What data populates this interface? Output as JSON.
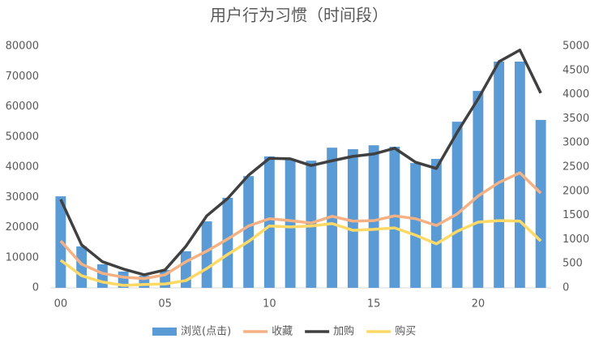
{
  "chart_data": {
    "type": "combo",
    "title": "用户行为习惯（时间段）",
    "categories": [
      "00",
      null,
      null,
      null,
      null,
      "05",
      null,
      null,
      null,
      null,
      "10",
      null,
      null,
      null,
      null,
      "15",
      null,
      null,
      null,
      null,
      "20",
      null,
      null,
      null
    ],
    "series": [
      {
        "name": "浏览(点击)",
        "type": "bar",
        "color": "#5b9bd5",
        "values": [
          30300,
          13700,
          7800,
          5400,
          4000,
          5900,
          12100,
          22000,
          29800,
          37000,
          43500,
          42700,
          42100,
          46400,
          45900,
          47200,
          46700,
          41300,
          42700,
          55000,
          65200,
          74900,
          74900,
          55600
        ]
      },
      {
        "name": "收藏",
        "type": "line",
        "axis": "y2",
        "color": "#f4b183",
        "values": [
          970,
          490,
          300,
          220,
          190,
          270,
          540,
          760,
          1010,
          1280,
          1430,
          1390,
          1340,
          1480,
          1380,
          1390,
          1490,
          1430,
          1290,
          1530,
          1900,
          2180,
          2380,
          1960
        ]
      },
      {
        "name": "加购",
        "type": "line",
        "axis": "y2",
        "color": "#404040",
        "values": [
          1830,
          890,
          540,
          390,
          270,
          370,
          860,
          1490,
          1850,
          2330,
          2680,
          2670,
          2530,
          2630,
          2720,
          2770,
          2890,
          2600,
          2470,
          3220,
          3910,
          4680,
          4920,
          4030
        ]
      },
      {
        "name": "购买",
        "type": "line",
        "axis": "y2",
        "color": "#ffd966",
        "values": [
          570,
          250,
          120,
          50,
          70,
          80,
          150,
          400,
          690,
          960,
          1280,
          1260,
          1280,
          1330,
          1190,
          1210,
          1240,
          1090,
          910,
          1170,
          1360,
          1390,
          1380,
          970
        ]
      }
    ],
    "ylim": [
      0,
      80000
    ],
    "yticks": [
      0,
      10000,
      20000,
      30000,
      40000,
      50000,
      60000,
      70000,
      80000
    ],
    "y2lim": [
      0,
      5000
    ],
    "y2ticks": [
      0,
      500,
      1000,
      1500,
      2000,
      2500,
      3000,
      3500,
      4000,
      4500,
      5000
    ],
    "legend": "bottom"
  }
}
